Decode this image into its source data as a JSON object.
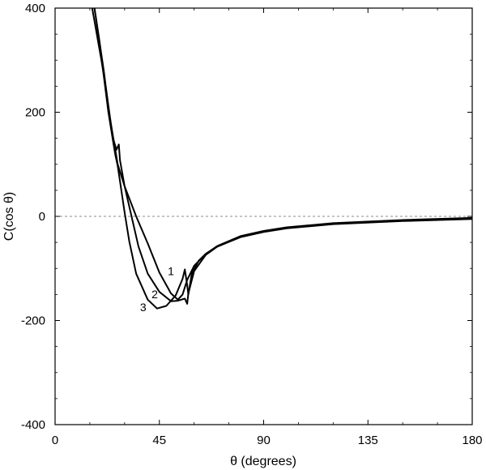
{
  "chart_data": {
    "type": "line",
    "title": "",
    "xlabel": "θ (degrees)",
    "ylabel": "C(cos θ)",
    "xlim": [
      0,
      180
    ],
    "ylim": [
      -400,
      400
    ],
    "xticks": [
      0,
      45,
      90,
      135,
      180
    ],
    "yticks": [
      -400,
      -200,
      0,
      200,
      400
    ],
    "xtick_labels": [
      "0",
      "45",
      "90",
      "135",
      "180"
    ],
    "ytick_labels": [
      "-400",
      "-200",
      "0",
      "200",
      "400"
    ],
    "zero_line": "dashed",
    "grid": false,
    "line_color": "#000000",
    "series": [
      {
        "name": "1",
        "label_at": [
          50,
          -113
        ],
        "points": [
          [
            16,
            400
          ],
          [
            18,
            350
          ],
          [
            20,
            300
          ],
          [
            22,
            245
          ],
          [
            24,
            180
          ],
          [
            25.5,
            140
          ],
          [
            27,
            100
          ],
          [
            30,
            58
          ],
          [
            35,
            0
          ],
          [
            40,
            -52
          ],
          [
            45,
            -108
          ],
          [
            50,
            -148
          ],
          [
            53,
            -160
          ],
          [
            55,
            -150
          ],
          [
            57,
            -122
          ],
          [
            60,
            -95
          ],
          [
            65,
            -72
          ],
          [
            70,
            -57
          ],
          [
            80,
            -38
          ],
          [
            90,
            -28
          ],
          [
            100,
            -21
          ],
          [
            120,
            -13
          ],
          [
            150,
            -7
          ],
          [
            180,
            -3
          ]
        ]
      },
      {
        "name": "2",
        "label_at": [
          43,
          -157
        ],
        "points": [
          [
            17,
            400
          ],
          [
            19,
            340
          ],
          [
            21,
            280
          ],
          [
            23,
            210
          ],
          [
            25,
            150
          ],
          [
            26.5,
            128
          ],
          [
            27.5,
            138
          ],
          [
            28,
            108
          ],
          [
            30,
            58
          ],
          [
            33,
            0
          ],
          [
            36,
            -58
          ],
          [
            40,
            -110
          ],
          [
            45,
            -145
          ],
          [
            50,
            -163
          ],
          [
            53,
            -162
          ],
          [
            56,
            -158
          ],
          [
            57,
            -168
          ],
          [
            57.5,
            -148
          ],
          [
            60,
            -105
          ],
          [
            65,
            -74
          ],
          [
            70,
            -58
          ],
          [
            80,
            -39
          ],
          [
            90,
            -29
          ],
          [
            100,
            -22
          ],
          [
            120,
            -14
          ],
          [
            150,
            -8
          ],
          [
            180,
            -4
          ]
        ]
      },
      {
        "name": "3",
        "label_at": [
          38,
          -182
        ],
        "points": [
          [
            17,
            400
          ],
          [
            19,
            340
          ],
          [
            21,
            270
          ],
          [
            23,
            200
          ],
          [
            25,
            145
          ],
          [
            26,
            118
          ],
          [
            27,
            97
          ],
          [
            28,
            68
          ],
          [
            30,
            8
          ],
          [
            32,
            -48
          ],
          [
            35,
            -110
          ],
          [
            40,
            -160
          ],
          [
            44,
            -177
          ],
          [
            48,
            -172
          ],
          [
            52,
            -152
          ],
          [
            55,
            -120
          ],
          [
            56,
            -102
          ],
          [
            57,
            -132
          ],
          [
            57.5,
            -150
          ],
          [
            59,
            -110
          ],
          [
            62,
            -85
          ],
          [
            65,
            -72
          ],
          [
            70,
            -58
          ],
          [
            80,
            -40
          ],
          [
            90,
            -30
          ],
          [
            100,
            -23
          ],
          [
            120,
            -15
          ],
          [
            150,
            -9
          ],
          [
            180,
            -5
          ]
        ]
      }
    ]
  }
}
